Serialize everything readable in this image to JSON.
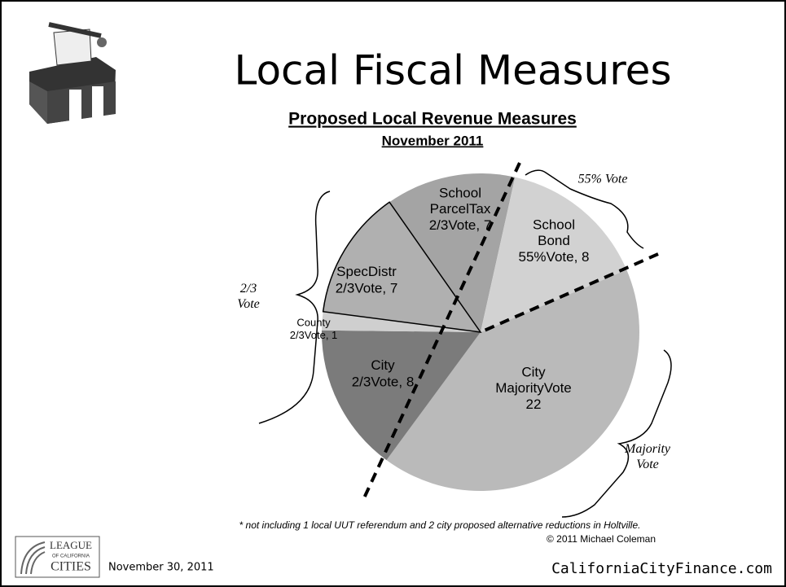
{
  "slide": {
    "title": "Local Fiscal Measures",
    "date": "November 30, 2011",
    "website": "CaliforniaCityFinance.com",
    "logo": {
      "line1": "LEAGUE",
      "line2": "OF CALIFORNIA",
      "line3": "CITIES"
    }
  },
  "chart_data": {
    "type": "pie",
    "title": "Proposed Local Revenue Measures",
    "subtitle": "November 2011",
    "categories": [
      "School ParcelTax",
      "School Bond",
      "City MajorityVote",
      "City",
      "County",
      "SpecDistr"
    ],
    "values": [
      7,
      8,
      22,
      8,
      1,
      7
    ],
    "value_labels": [
      "2/3Vote, 7",
      "55%Vote, 8",
      "22",
      "2/3Vote, 8",
      "2/3Vote, 1",
      "2/3Vote, 7"
    ],
    "colors": [
      "#a4a4a4",
      "#d2d2d2",
      "#bababa",
      "#7b7b7b",
      "#cfcfcf",
      "#b0b0b0"
    ],
    "annotations": [
      "55% Vote",
      "2/3 Vote",
      "Majority Vote"
    ],
    "footnote": "* not including 1 local UUT referendum and 2 city proposed alternative reductions in Holtville.",
    "credit": "© 2011 Michael Coleman"
  }
}
